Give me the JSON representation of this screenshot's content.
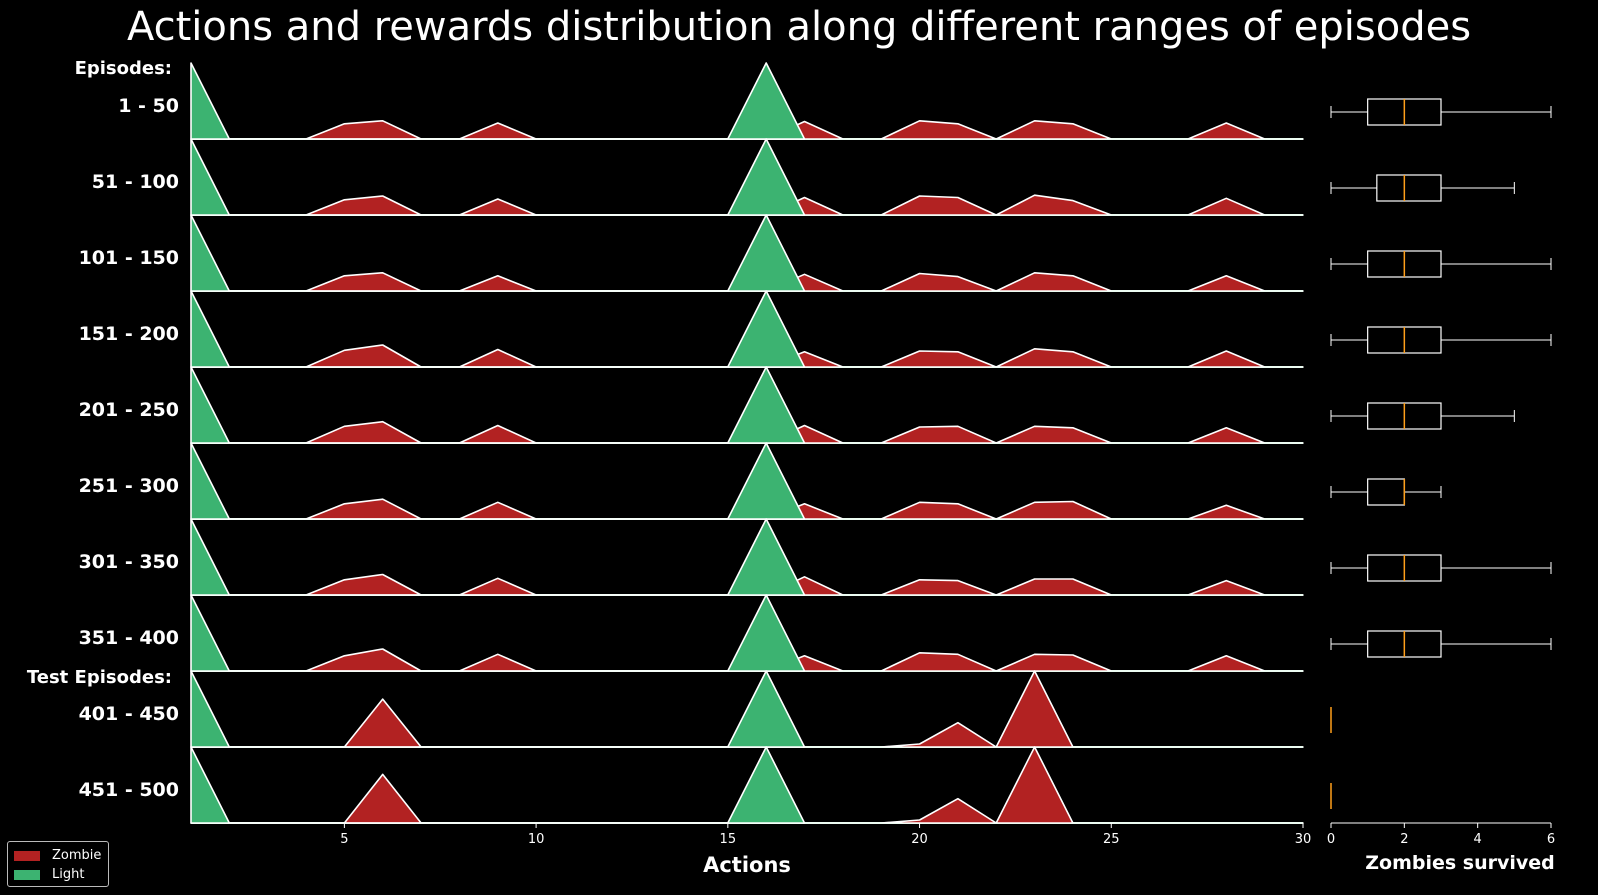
{
  "chart_data": {
    "type": "area",
    "title": "Actions and rewards distribution along different ranges of episodes",
    "xlabel": "Actions",
    "box_xlabel": "Zombies survived",
    "group_labels": [
      "Episodes:",
      "Test Episodes:"
    ],
    "xlim": [
      1,
      30
    ],
    "x_ticks": [
      5,
      10,
      15,
      20,
      25,
      30
    ],
    "box_xlim": [
      0,
      6
    ],
    "box_ticks": [
      0,
      2,
      4,
      6
    ],
    "colors": {
      "zombie": "#b22222",
      "light": "#3cb371",
      "edge": "#ffffff",
      "median": "#ff9f1a"
    },
    "legend": [
      {
        "name": "Zombie",
        "color": "#b22222"
      },
      {
        "name": "Light",
        "color": "#3cb371"
      }
    ],
    "rows": [
      {
        "label": "1 - 50",
        "zombie": [
          [
            1,
            0
          ],
          [
            4,
            0
          ],
          [
            5,
            0.2
          ],
          [
            6,
            0.24
          ],
          [
            7,
            0
          ],
          [
            8,
            0
          ],
          [
            9,
            0.21
          ],
          [
            10,
            0
          ],
          [
            16,
            0
          ],
          [
            17,
            0.23
          ],
          [
            18,
            0
          ],
          [
            19,
            0
          ],
          [
            20,
            0.24
          ],
          [
            21,
            0.2
          ],
          [
            22,
            0
          ],
          [
            23,
            0.24
          ],
          [
            24,
            0.2
          ],
          [
            25,
            0
          ],
          [
            27,
            0
          ],
          [
            28,
            0.21
          ],
          [
            29,
            0
          ],
          [
            30,
            0
          ]
        ],
        "light": [
          [
            1,
            1
          ],
          [
            2,
            0
          ],
          [
            15,
            0
          ],
          [
            16,
            1
          ],
          [
            17,
            0
          ]
        ],
        "box": {
          "whisker_low": 0,
          "q1": 1,
          "median": 2,
          "q3": 3,
          "whisker_high": 6
        }
      },
      {
        "label": "51 - 100",
        "zombie": [
          [
            1,
            0
          ],
          [
            4,
            0
          ],
          [
            5,
            0.2
          ],
          [
            6,
            0.25
          ],
          [
            7,
            0
          ],
          [
            8,
            0
          ],
          [
            9,
            0.21
          ],
          [
            10,
            0
          ],
          [
            16,
            0
          ],
          [
            17,
            0.23
          ],
          [
            18,
            0
          ],
          [
            19,
            0
          ],
          [
            20,
            0.25
          ],
          [
            21,
            0.23
          ],
          [
            22,
            0
          ],
          [
            23,
            0.26
          ],
          [
            24,
            0.19
          ],
          [
            25,
            0
          ],
          [
            27,
            0
          ],
          [
            28,
            0.22
          ],
          [
            29,
            0
          ],
          [
            30,
            0
          ]
        ],
        "light": [
          [
            1,
            1
          ],
          [
            2,
            0
          ],
          [
            15,
            0
          ],
          [
            16,
            1
          ],
          [
            17,
            0
          ]
        ],
        "box": {
          "whisker_low": 0,
          "q1": 1.25,
          "median": 2,
          "q3": 3,
          "whisker_high": 5
        }
      },
      {
        "label": "101 - 150",
        "zombie": [
          [
            1,
            0
          ],
          [
            4,
            0
          ],
          [
            5,
            0.2
          ],
          [
            6,
            0.24
          ],
          [
            7,
            0
          ],
          [
            8,
            0
          ],
          [
            9,
            0.2
          ],
          [
            10,
            0
          ],
          [
            16,
            0
          ],
          [
            17,
            0.22
          ],
          [
            18,
            0
          ],
          [
            19,
            0
          ],
          [
            20,
            0.23
          ],
          [
            21,
            0.19
          ],
          [
            22,
            0
          ],
          [
            23,
            0.24
          ],
          [
            24,
            0.2
          ],
          [
            25,
            0
          ],
          [
            27,
            0
          ],
          [
            28,
            0.2
          ],
          [
            29,
            0
          ],
          [
            30,
            0
          ]
        ],
        "light": [
          [
            1,
            1
          ],
          [
            2,
            0
          ],
          [
            15,
            0
          ],
          [
            16,
            1
          ],
          [
            17,
            0
          ]
        ],
        "box": {
          "whisker_low": 0,
          "q1": 1,
          "median": 2,
          "q3": 3,
          "whisker_high": 6
        }
      },
      {
        "label": "151 - 200",
        "zombie": [
          [
            1,
            0
          ],
          [
            4,
            0
          ],
          [
            5,
            0.22
          ],
          [
            6,
            0.29
          ],
          [
            7,
            0
          ],
          [
            8,
            0
          ],
          [
            9,
            0.23
          ],
          [
            10,
            0
          ],
          [
            16,
            0
          ],
          [
            17,
            0.2
          ],
          [
            18,
            0
          ],
          [
            19,
            0
          ],
          [
            20,
            0.21
          ],
          [
            21,
            0.2
          ],
          [
            22,
            0
          ],
          [
            23,
            0.24
          ],
          [
            24,
            0.2
          ],
          [
            25,
            0
          ],
          [
            27,
            0
          ],
          [
            28,
            0.21
          ],
          [
            29,
            0
          ],
          [
            30,
            0
          ]
        ],
        "light": [
          [
            1,
            1
          ],
          [
            2,
            0
          ],
          [
            15,
            0
          ],
          [
            16,
            1
          ],
          [
            17,
            0
          ]
        ],
        "box": {
          "whisker_low": 0,
          "q1": 1,
          "median": 2,
          "q3": 3,
          "whisker_high": 6
        }
      },
      {
        "label": "201 - 250",
        "zombie": [
          [
            1,
            0
          ],
          [
            4,
            0
          ],
          [
            5,
            0.22
          ],
          [
            6,
            0.28
          ],
          [
            7,
            0
          ],
          [
            8,
            0
          ],
          [
            9,
            0.23
          ],
          [
            10,
            0
          ],
          [
            16,
            0
          ],
          [
            17,
            0.23
          ],
          [
            18,
            0
          ],
          [
            19,
            0
          ],
          [
            20,
            0.21
          ],
          [
            21,
            0.22
          ],
          [
            22,
            0
          ],
          [
            23,
            0.22
          ],
          [
            24,
            0.2
          ],
          [
            25,
            0
          ],
          [
            27,
            0
          ],
          [
            28,
            0.2
          ],
          [
            29,
            0
          ],
          [
            30,
            0
          ]
        ],
        "light": [
          [
            1,
            1
          ],
          [
            2,
            0
          ],
          [
            15,
            0
          ],
          [
            16,
            1
          ],
          [
            17,
            0
          ]
        ],
        "box": {
          "whisker_low": 0,
          "q1": 1,
          "median": 2,
          "q3": 3,
          "whisker_high": 5
        }
      },
      {
        "label": "251 - 300",
        "zombie": [
          [
            1,
            0
          ],
          [
            4,
            0
          ],
          [
            5,
            0.2
          ],
          [
            6,
            0.26
          ],
          [
            7,
            0
          ],
          [
            8,
            0
          ],
          [
            9,
            0.22
          ],
          [
            10,
            0
          ],
          [
            16,
            0
          ],
          [
            17,
            0.2
          ],
          [
            18,
            0
          ],
          [
            19,
            0
          ],
          [
            20,
            0.22
          ],
          [
            21,
            0.2
          ],
          [
            22,
            0
          ],
          [
            23,
            0.22
          ],
          [
            24,
            0.23
          ],
          [
            25,
            0
          ],
          [
            27,
            0
          ],
          [
            28,
            0.18
          ],
          [
            29,
            0
          ],
          [
            30,
            0
          ]
        ],
        "light": [
          [
            1,
            1
          ],
          [
            2,
            0
          ],
          [
            15,
            0
          ],
          [
            16,
            1
          ],
          [
            17,
            0
          ]
        ],
        "box": {
          "whisker_low": 0,
          "q1": 1,
          "median": 2,
          "q3": 2,
          "whisker_high": 3
        }
      },
      {
        "label": "301 - 350",
        "zombie": [
          [
            1,
            0
          ],
          [
            4,
            0
          ],
          [
            5,
            0.2
          ],
          [
            6,
            0.27
          ],
          [
            7,
            0
          ],
          [
            8,
            0
          ],
          [
            9,
            0.22
          ],
          [
            10,
            0
          ],
          [
            16,
            0
          ],
          [
            17,
            0.24
          ],
          [
            18,
            0
          ],
          [
            19,
            0
          ],
          [
            20,
            0.2
          ],
          [
            21,
            0.19
          ],
          [
            22,
            0
          ],
          [
            23,
            0.21
          ],
          [
            24,
            0.21
          ],
          [
            25,
            0
          ],
          [
            27,
            0
          ],
          [
            28,
            0.19
          ],
          [
            29,
            0
          ],
          [
            30,
            0
          ]
        ],
        "light": [
          [
            1,
            1
          ],
          [
            2,
            0
          ],
          [
            15,
            0
          ],
          [
            16,
            1
          ],
          [
            17,
            0
          ]
        ],
        "box": {
          "whisker_low": 0,
          "q1": 1,
          "median": 2,
          "q3": 3,
          "whisker_high": 6
        }
      },
      {
        "label": "351 - 400",
        "zombie": [
          [
            1,
            0
          ],
          [
            4,
            0
          ],
          [
            5,
            0.2
          ],
          [
            6,
            0.29
          ],
          [
            7,
            0
          ],
          [
            8,
            0
          ],
          [
            9,
            0.22
          ],
          [
            10,
            0
          ],
          [
            16,
            0
          ],
          [
            17,
            0.2
          ],
          [
            18,
            0
          ],
          [
            19,
            0
          ],
          [
            20,
            0.24
          ],
          [
            21,
            0.22
          ],
          [
            22,
            0
          ],
          [
            23,
            0.22
          ],
          [
            24,
            0.21
          ],
          [
            25,
            0
          ],
          [
            27,
            0
          ],
          [
            28,
            0.2
          ],
          [
            29,
            0
          ],
          [
            30,
            0
          ]
        ],
        "light": [
          [
            1,
            1
          ],
          [
            2,
            0
          ],
          [
            15,
            0
          ],
          [
            16,
            1
          ],
          [
            17,
            0
          ]
        ],
        "box": {
          "whisker_low": 0,
          "q1": 1,
          "median": 2,
          "q3": 3,
          "whisker_high": 6
        }
      },
      {
        "label": "401 - 450",
        "zombie": [
          [
            1,
            0
          ],
          [
            5,
            0
          ],
          [
            6,
            0.63
          ],
          [
            7,
            0
          ],
          [
            19,
            0
          ],
          [
            20,
            0.04
          ],
          [
            21,
            0.32
          ],
          [
            22,
            0
          ],
          [
            23,
            1
          ],
          [
            24,
            0
          ],
          [
            30,
            0
          ]
        ],
        "light": [
          [
            1,
            1
          ],
          [
            2,
            0
          ],
          [
            15,
            0
          ],
          [
            16,
            1
          ],
          [
            17,
            0
          ]
        ],
        "box": {
          "whisker_low": 0,
          "q1": 0,
          "median": 0,
          "q3": 0,
          "whisker_high": 0
        }
      },
      {
        "label": "451 - 500",
        "zombie": [
          [
            1,
            0
          ],
          [
            5,
            0
          ],
          [
            6,
            0.64
          ],
          [
            7,
            0
          ],
          [
            19,
            0
          ],
          [
            20,
            0.04
          ],
          [
            21,
            0.32
          ],
          [
            22,
            0
          ],
          [
            23,
            1
          ],
          [
            24,
            0
          ],
          [
            30,
            0
          ]
        ],
        "light": [
          [
            1,
            1
          ],
          [
            2,
            0
          ],
          [
            15,
            0
          ],
          [
            16,
            1
          ],
          [
            17,
            0
          ]
        ],
        "box": {
          "whisker_low": 0,
          "q1": 0,
          "median": 0,
          "q3": 0,
          "whisker_high": 0
        }
      }
    ]
  }
}
